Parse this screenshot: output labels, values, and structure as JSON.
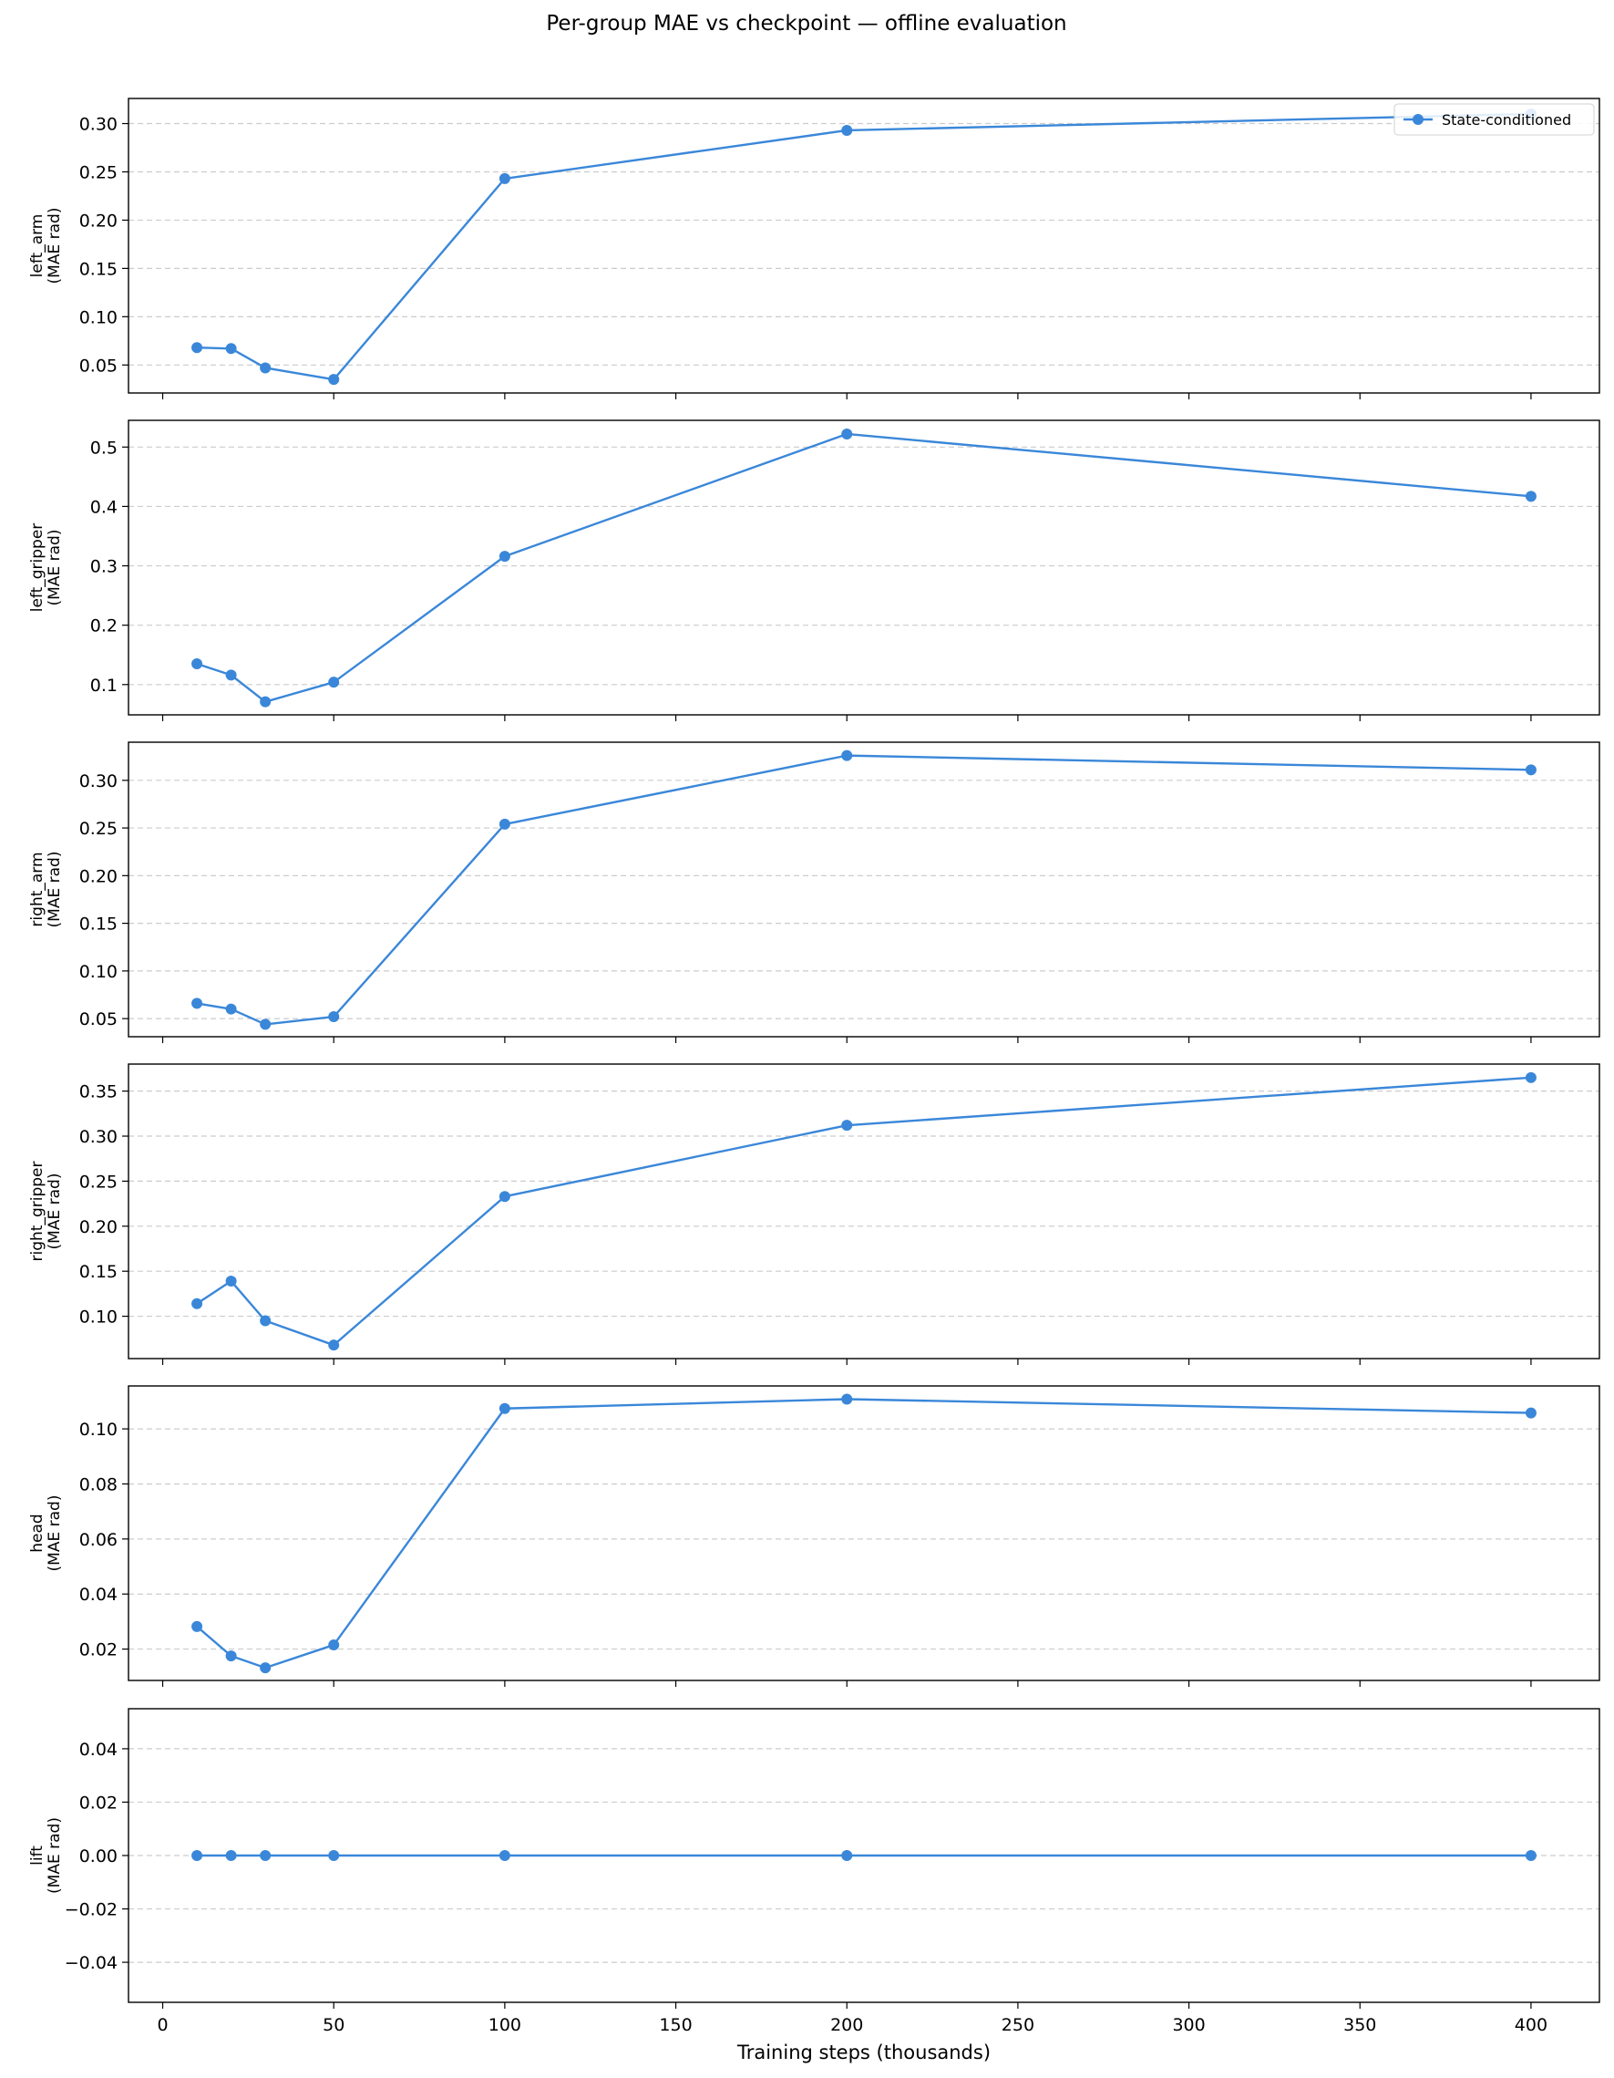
{
  "figure_title": "Per-group MAE vs checkpoint — offline evaluation",
  "colors": {
    "series": "#3a87d9",
    "grid": "#cccccc",
    "axes": "#000000"
  },
  "chart_data": [
    {
      "type": "line",
      "ylabel_group": "left_arm",
      "ylabel_unit": "(MAE rad)",
      "xlim": [
        -10,
        420
      ],
      "ylim": [
        0.021,
        0.326
      ],
      "yticks": [
        "0.05",
        "0.10",
        "0.15",
        "0.20",
        "0.25",
        "0.30"
      ],
      "ytick_values": [
        0.05,
        0.1,
        0.15,
        0.2,
        0.25,
        0.3
      ],
      "grid": "y-dashed",
      "legend": {
        "label": "State-conditioned",
        "placement": "top-right"
      },
      "series": [
        {
          "name": "State-conditioned",
          "x": [
            10,
            20,
            30,
            50,
            100,
            200,
            400
          ],
          "y": [
            0.068,
            0.067,
            0.047,
            0.035,
            0.243,
            0.293,
            0.31
          ]
        }
      ]
    },
    {
      "type": "line",
      "ylabel_group": "left_gripper",
      "ylabel_unit": "(MAE rad)",
      "xlim": [
        -10,
        420
      ],
      "ylim": [
        0.049,
        0.545
      ],
      "yticks": [
        "0.1",
        "0.2",
        "0.3",
        "0.4",
        "0.5"
      ],
      "ytick_values": [
        0.1,
        0.2,
        0.3,
        0.4,
        0.5
      ],
      "grid": "y-dashed",
      "series": [
        {
          "x": [
            10,
            20,
            30,
            50,
            100,
            200,
            400
          ],
          "y": [
            0.135,
            0.116,
            0.071,
            0.104,
            0.316,
            0.522,
            0.417
          ]
        }
      ]
    },
    {
      "type": "line",
      "ylabel_group": "right_arm",
      "ylabel_unit": "(MAE rad)",
      "xlim": [
        -10,
        420
      ],
      "ylim": [
        0.031,
        0.34
      ],
      "yticks": [
        "0.05",
        "0.10",
        "0.15",
        "0.20",
        "0.25",
        "0.30"
      ],
      "ytick_values": [
        0.05,
        0.1,
        0.15,
        0.2,
        0.25,
        0.3
      ],
      "grid": "y-dashed",
      "series": [
        {
          "x": [
            10,
            20,
            30,
            50,
            100,
            200,
            400
          ],
          "y": [
            0.066,
            0.06,
            0.044,
            0.052,
            0.254,
            0.326,
            0.311
          ]
        }
      ]
    },
    {
      "type": "line",
      "ylabel_group": "right_gripper",
      "ylabel_unit": "(MAE rad)",
      "xlim": [
        -10,
        420
      ],
      "ylim": [
        0.053,
        0.38
      ],
      "yticks": [
        "0.10",
        "0.15",
        "0.20",
        "0.25",
        "0.30",
        "0.35"
      ],
      "ytick_values": [
        0.1,
        0.15,
        0.2,
        0.25,
        0.3,
        0.35
      ],
      "grid": "y-dashed",
      "series": [
        {
          "x": [
            10,
            20,
            30,
            50,
            100,
            200,
            400
          ],
          "y": [
            0.114,
            0.139,
            0.095,
            0.068,
            0.233,
            0.312,
            0.365
          ]
        }
      ]
    },
    {
      "type": "line",
      "ylabel_group": "head",
      "ylabel_unit": "(MAE rad)",
      "xlim": [
        -10,
        420
      ],
      "ylim": [
        0.0086,
        0.1156
      ],
      "yticks": [
        "0.02",
        "0.04",
        "0.06",
        "0.08",
        "0.10"
      ],
      "ytick_values": [
        0.02,
        0.04,
        0.06,
        0.08,
        0.1
      ],
      "grid": "y-dashed",
      "series": [
        {
          "x": [
            10,
            20,
            30,
            50,
            100,
            200,
            400
          ],
          "y": [
            0.0282,
            0.0175,
            0.0132,
            0.0215,
            0.1074,
            0.1108,
            0.1058
          ]
        }
      ]
    },
    {
      "type": "line",
      "ylabel_group": "lift",
      "ylabel_unit": "(MAE rad)",
      "xlim": [
        -10,
        420
      ],
      "ylim": [
        -0.055,
        0.055
      ],
      "yticks": [
        "−0.04",
        "−0.02",
        "0.00",
        "0.02",
        "0.04"
      ],
      "ytick_values": [
        -0.04,
        -0.02,
        0.0,
        0.02,
        0.04
      ],
      "grid": "y-dashed",
      "series": [
        {
          "x": [
            10,
            20,
            30,
            50,
            100,
            200,
            400
          ],
          "y": [
            0,
            0,
            0,
            0,
            0,
            0,
            0
          ]
        }
      ]
    }
  ],
  "xaxis": {
    "label": "Training steps (thousands)",
    "ticks": [
      "0",
      "50",
      "100",
      "150",
      "200",
      "250",
      "300",
      "350",
      "400"
    ],
    "tick_values": [
      0,
      50,
      100,
      150,
      200,
      250,
      300,
      350,
      400
    ]
  }
}
